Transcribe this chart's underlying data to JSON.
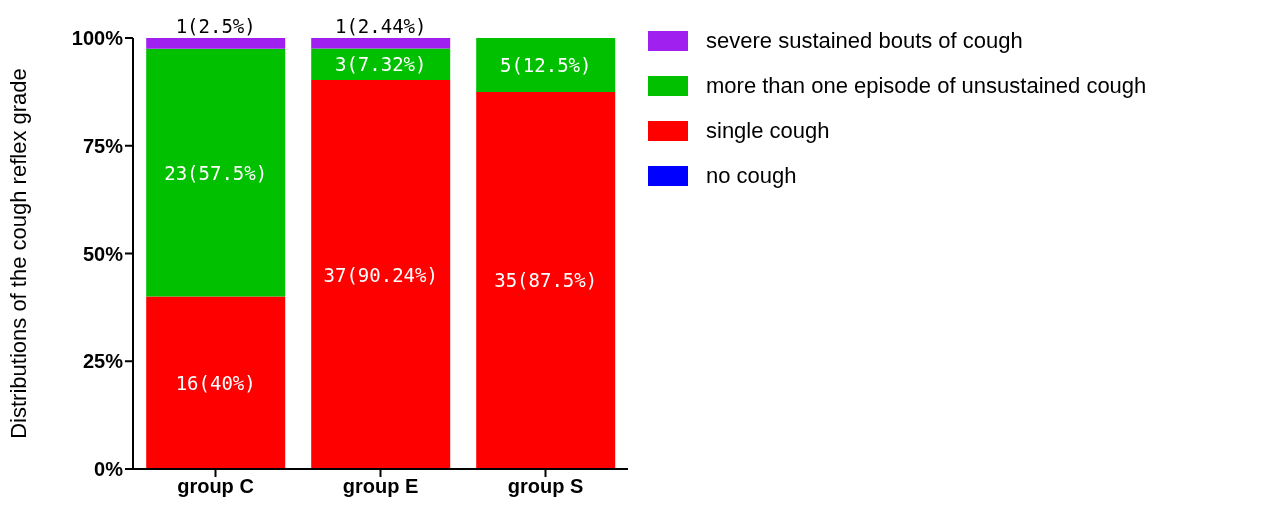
{
  "chart_data": {
    "type": "bar",
    "stacked": true,
    "ylabel": "Distributions of the cough reflex grade",
    "categories": [
      "group C",
      "group E",
      "group S"
    ],
    "series": [
      {
        "name": "no cough",
        "color": "#0000ff",
        "values": [
          0,
          0,
          0
        ]
      },
      {
        "name": "single cough",
        "color": "#ff0000",
        "values": [
          40,
          90.24,
          87.5
        ],
        "value_labels": [
          "16(40%)",
          "37(90.24%)",
          "35(87.5%)"
        ]
      },
      {
        "name": "more than one episode of unsustained cough",
        "color": "#00c000",
        "values": [
          57.5,
          7.32,
          12.5
        ],
        "value_labels": [
          "23(57.5%)",
          "3(7.32%)",
          "5(12.5%)"
        ]
      },
      {
        "name": "severe sustained bouts of cough",
        "color": "#a020f0",
        "values": [
          2.5,
          2.44,
          0
        ],
        "value_labels": [
          "1(2.5%)",
          "1(2.44%)",
          null
        ]
      }
    ],
    "ylim": [
      0,
      100
    ],
    "yticks": [
      {
        "value": 0,
        "label": "0%"
      },
      {
        "value": 25,
        "label": "25%"
      },
      {
        "value": 50,
        "label": "50%"
      },
      {
        "value": 75,
        "label": "75%"
      },
      {
        "value": 100,
        "label": "100%"
      }
    ],
    "grid": false,
    "legend": "right"
  }
}
